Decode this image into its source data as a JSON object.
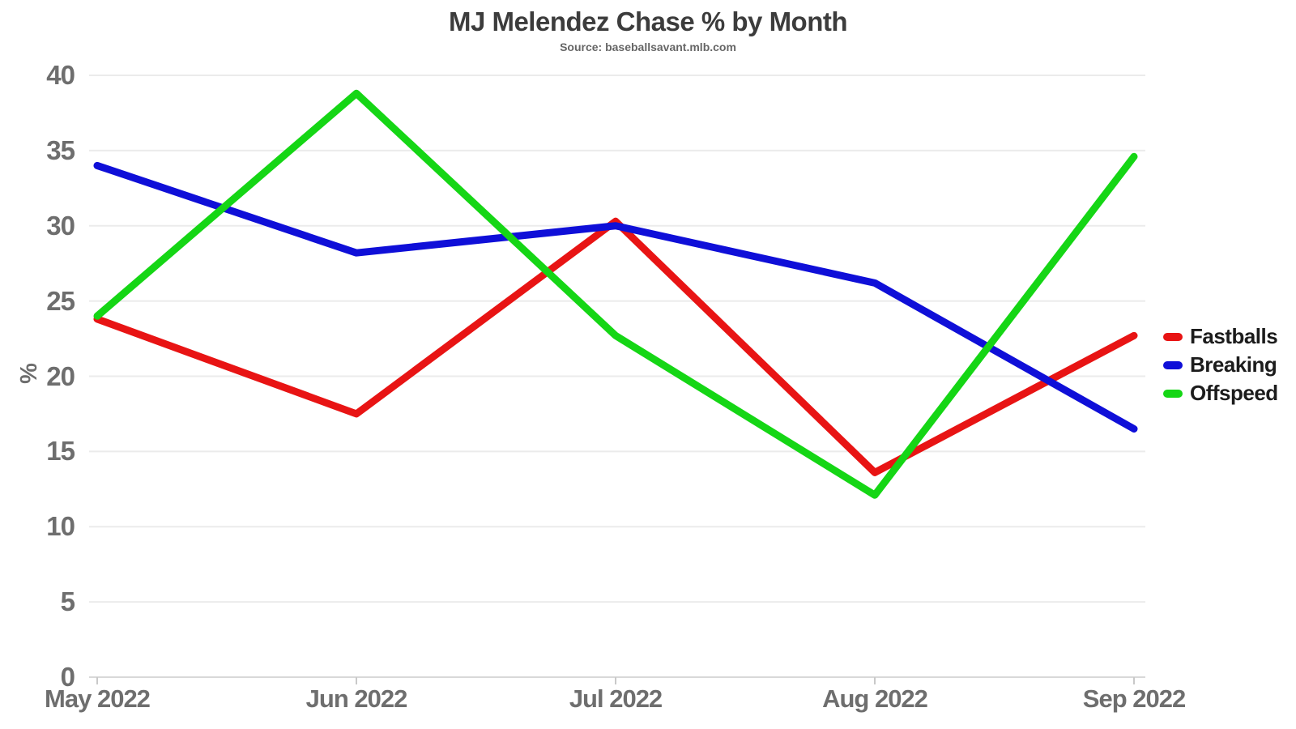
{
  "chart": {
    "title": "MJ Melendez Chase % by Month",
    "subtitle": "Source: baseballsavant.mlb.com",
    "ylabel": "%"
  },
  "chart_data": {
    "type": "line",
    "title": "MJ Melendez Chase % by Month",
    "subtitle": "Source: baseballsavant.mlb.com",
    "xlabel": "",
    "ylabel": "%",
    "categories": [
      "May 2022",
      "Jun 2022",
      "Jul 2022",
      "Aug 2022",
      "Sep 2022"
    ],
    "series": [
      {
        "name": "Fastballs",
        "color": "#e81414",
        "values": [
          23.8,
          17.5,
          30.3,
          13.6,
          22.7
        ]
      },
      {
        "name": "Breaking",
        "color": "#0f0fd8",
        "values": [
          34.0,
          28.2,
          30.0,
          26.2,
          16.5
        ]
      },
      {
        "name": "Offspeed",
        "color": "#15d615",
        "values": [
          24.0,
          38.8,
          22.7,
          12.1,
          34.6
        ]
      }
    ],
    "yticks": [
      0,
      5,
      10,
      15,
      20,
      25,
      30,
      35,
      40
    ],
    "ylim": [
      0,
      41
    ],
    "grid": "horizontal",
    "legend_position": "right-outside"
  },
  "colors": {
    "background": "#ffffff",
    "gridline": "#ebebeb",
    "axis_line": "#d8d8d8",
    "tick_mark": "#c9c9c9",
    "title_text": "#3c3c3c",
    "subtitle_text": "#666666",
    "tick_label_text": "#6e6e6e",
    "legend_text": "#1c1c1c"
  }
}
